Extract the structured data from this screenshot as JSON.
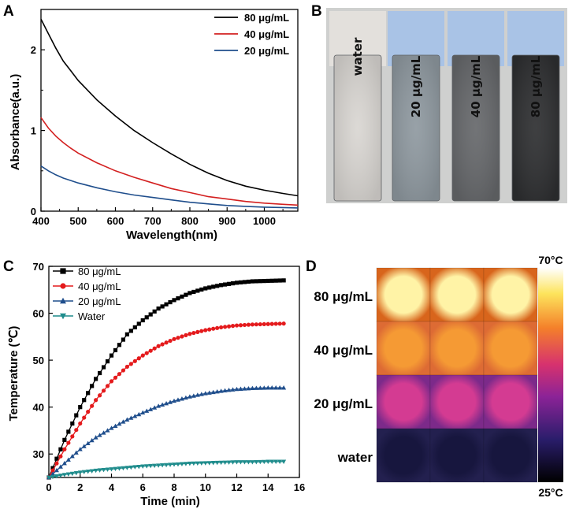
{
  "panels": {
    "a": "A",
    "b": "B",
    "c": "C",
    "d": "D"
  },
  "chart_data": [
    {
      "id": "A",
      "type": "line",
      "title": "",
      "xlabel": "Wavelength(nm)",
      "ylabel": "Absorbance(a.u.)",
      "xlim": [
        400,
        1090
      ],
      "ylim": [
        0,
        2.5
      ],
      "xticks": [
        "400",
        "500",
        "600",
        "700",
        "800",
        "900",
        "1000"
      ],
      "yticks": [
        "0",
        "1",
        "2"
      ],
      "legend_position": "top-right",
      "series": [
        {
          "name": "80 μg/mL",
          "color": "#000000",
          "x": [
            400,
            420,
            440,
            460,
            480,
            500,
            550,
            600,
            650,
            700,
            750,
            800,
            850,
            900,
            950,
            1000,
            1050,
            1090
          ],
          "y": [
            2.38,
            2.2,
            2.02,
            1.86,
            1.74,
            1.62,
            1.38,
            1.18,
            1.0,
            0.85,
            0.71,
            0.58,
            0.47,
            0.38,
            0.31,
            0.26,
            0.22,
            0.19
          ]
        },
        {
          "name": "40 μg/mL",
          "color": "#d32020",
          "x": [
            400,
            420,
            440,
            460,
            480,
            500,
            550,
            600,
            650,
            700,
            750,
            800,
            850,
            900,
            950,
            1000,
            1050,
            1090
          ],
          "y": [
            1.16,
            1.03,
            0.93,
            0.85,
            0.78,
            0.72,
            0.6,
            0.5,
            0.42,
            0.35,
            0.28,
            0.23,
            0.18,
            0.15,
            0.12,
            0.1,
            0.085,
            0.075
          ]
        },
        {
          "name": "20 μg/mL",
          "color": "#1f4e8c",
          "x": [
            400,
            420,
            440,
            460,
            480,
            500,
            550,
            600,
            650,
            700,
            750,
            800,
            850,
            900,
            950,
            1000,
            1050,
            1090
          ],
          "y": [
            0.56,
            0.5,
            0.45,
            0.41,
            0.38,
            0.35,
            0.29,
            0.24,
            0.2,
            0.17,
            0.14,
            0.11,
            0.09,
            0.07,
            0.06,
            0.05,
            0.045,
            0.04
          ]
        }
      ]
    },
    {
      "id": "C",
      "type": "line",
      "title": "",
      "xlabel": "Time (min)",
      "ylabel": "Temperature (℃)",
      "xlim": [
        0,
        16
      ],
      "ylim": [
        25,
        70
      ],
      "xticks": [
        "0",
        "2",
        "4",
        "6",
        "8",
        "10",
        "12",
        "14",
        "16"
      ],
      "yticks": [
        "30",
        "40",
        "50",
        "60",
        "70"
      ],
      "legend_position": "top-left",
      "series": [
        {
          "name": "80 μg/mL",
          "color": "#000000",
          "marker": "square",
          "x": [
            0,
            1,
            2,
            3,
            4,
            5,
            6,
            7,
            8,
            9,
            10,
            11,
            12,
            13,
            14,
            15
          ],
          "y": [
            25,
            33,
            40,
            46,
            51,
            55.5,
            58.5,
            61,
            62.8,
            64.3,
            65.3,
            66,
            66.5,
            66.8,
            66.9,
            67
          ]
        },
        {
          "name": "40 μg/mL",
          "color": "#e41a1c",
          "marker": "circle",
          "x": [
            0,
            1,
            2,
            3,
            4,
            5,
            6,
            7,
            8,
            9,
            10,
            11,
            12,
            13,
            14,
            15
          ],
          "y": [
            25,
            31,
            36.5,
            41.5,
            45.5,
            48.6,
            51,
            53,
            54.5,
            55.6,
            56.4,
            57,
            57.4,
            57.6,
            57.7,
            57.8
          ]
        },
        {
          "name": "20 μg/mL",
          "color": "#1f4e8c",
          "marker": "triangle-up",
          "x": [
            0,
            1,
            2,
            3,
            4,
            5,
            6,
            7,
            8,
            9,
            10,
            11,
            12,
            13,
            14,
            15
          ],
          "y": [
            25,
            28,
            31,
            33.5,
            35.5,
            37.3,
            38.8,
            40.2,
            41.3,
            42.2,
            42.9,
            43.4,
            43.8,
            44,
            44.1,
            44.1
          ]
        },
        {
          "name": "Water",
          "color": "#1f8c8c",
          "marker": "triangle-down",
          "x": [
            0,
            1,
            2,
            3,
            4,
            5,
            6,
            7,
            8,
            9,
            10,
            11,
            12,
            13,
            14,
            15
          ],
          "y": [
            25,
            25.6,
            26.1,
            26.5,
            26.8,
            27.1,
            27.4,
            27.6,
            27.8,
            28,
            28.1,
            28.2,
            28.3,
            28.3,
            28.4,
            28.4
          ]
        }
      ]
    }
  ],
  "panel_b": {
    "vials": [
      {
        "label": "water",
        "color": "#d9d6d2"
      },
      {
        "label": "20 μg/mL",
        "color": "#8f99a0"
      },
      {
        "label": "40 μg/mL",
        "color": "#66686b"
      },
      {
        "label": "80 μg/mL",
        "color": "#2e2f31"
      }
    ]
  },
  "panel_d": {
    "rows": [
      {
        "label": "80 μg/mL",
        "bg": "#d8651c",
        "center": "#fff3a6"
      },
      {
        "label": "40 μg/mL",
        "bg": "#dd6b34",
        "center": "#f59a34"
      },
      {
        "label": "20 μg/mL",
        "bg": "#7c2a8a",
        "center": "#d43b92"
      },
      {
        "label": "water",
        "bg": "#23204f",
        "center": "#17163e"
      }
    ],
    "colorbar_max": "70°C",
    "colorbar_min": "25°C"
  }
}
